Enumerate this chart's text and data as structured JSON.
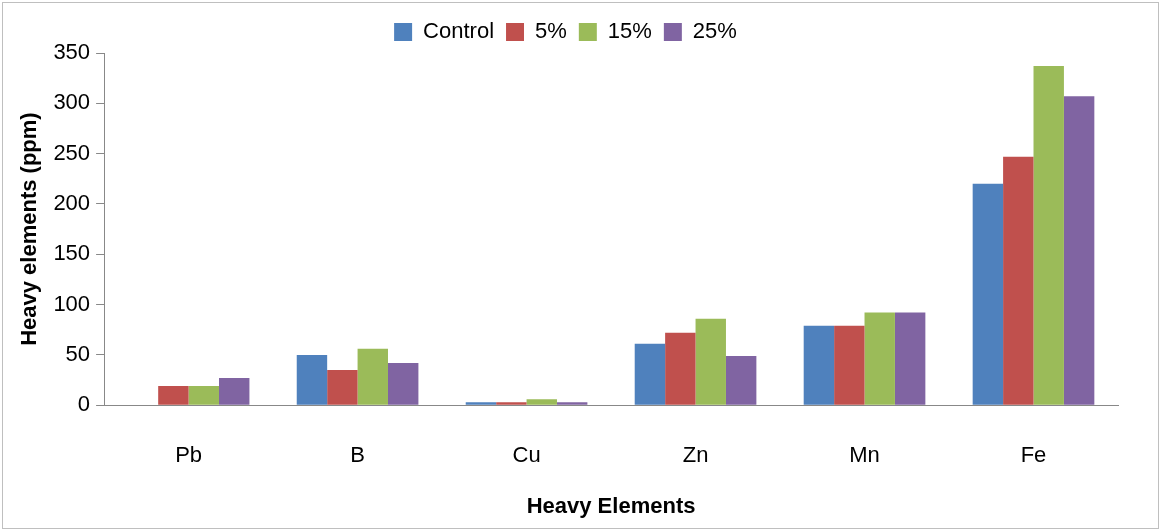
{
  "chart_data": {
    "type": "bar",
    "xlabel": "Heavy Elements",
    "ylabel": "Heavy elements (ppm)",
    "categories": [
      "Pb",
      "B",
      "Cu",
      "Zn",
      "Mn",
      "Fe"
    ],
    "series": [
      {
        "name": "Control",
        "color": "#4f81bd",
        "values": [
          0,
          50,
          3,
          61,
          79,
          220
        ]
      },
      {
        "name": "5%",
        "color": "#c0504d",
        "values": [
          19,
          35,
          3,
          72,
          79,
          247
        ]
      },
      {
        "name": "15%",
        "color": "#9bbb59",
        "values": [
          19,
          56,
          6,
          86,
          92,
          337
        ]
      },
      {
        "name": "25%",
        "color": "#8064a2",
        "values": [
          27,
          42,
          3,
          49,
          92,
          307
        ]
      }
    ],
    "ylim": [
      0,
      350
    ],
    "yticks": [
      0,
      50,
      100,
      150,
      200,
      250,
      300,
      350
    ],
    "grid": false,
    "legend": "top"
  }
}
